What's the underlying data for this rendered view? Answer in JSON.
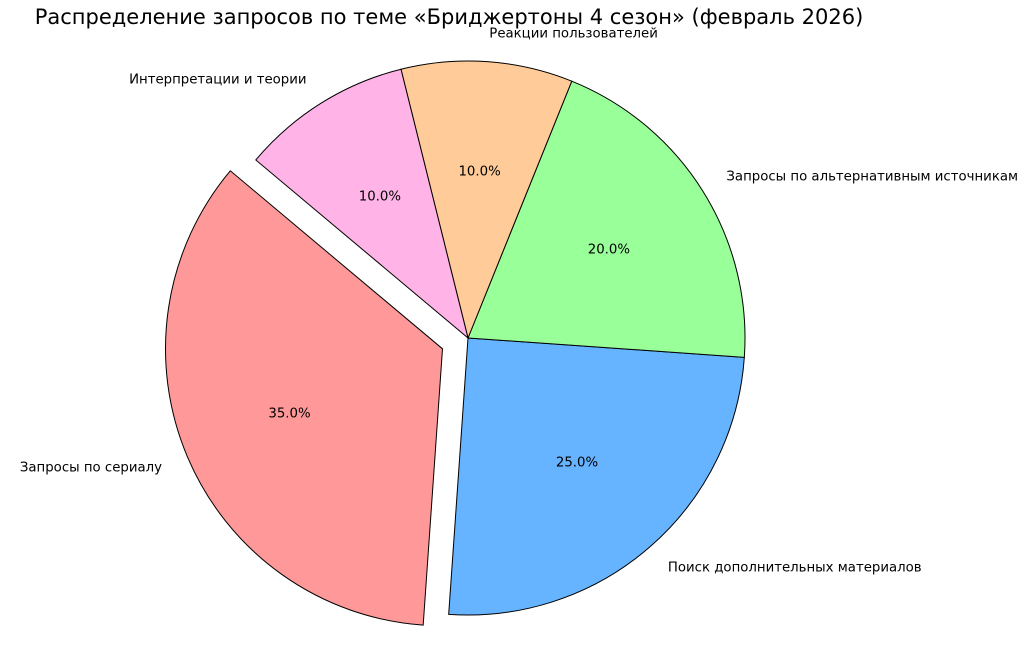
{
  "chart_data": {
    "type": "pie",
    "title": "Распределение запросов по теме «Бриджертоны 4 сезон» (февраль 2026)",
    "start_angle": 140,
    "counterclock": true,
    "autopct_format": "1-decimal-percent",
    "edge_color": "#000000",
    "background_color": "#ffffff",
    "text_color": "#000000",
    "slices": [
      {
        "label": "Запросы по сериалу",
        "value": 35.0,
        "percent_label": "35.0%",
        "color": "#ff9999",
        "explode": 0.1
      },
      {
        "label": "Поиск дополнительных материалов",
        "value": 25.0,
        "percent_label": "25.0%",
        "color": "#66b3ff",
        "explode": 0
      },
      {
        "label": "Запросы по альтернативным источникам",
        "value": 20.0,
        "percent_label": "20.0%",
        "color": "#99ff99",
        "explode": 0
      },
      {
        "label": "Реакции пользователей",
        "value": 10.0,
        "percent_label": "10.0%",
        "color": "#ffcc99",
        "explode": 0
      },
      {
        "label": "Интерпретации и теории",
        "value": 10.0,
        "percent_label": "10.0%",
        "color": "#ffb3e6",
        "explode": 0
      }
    ]
  }
}
